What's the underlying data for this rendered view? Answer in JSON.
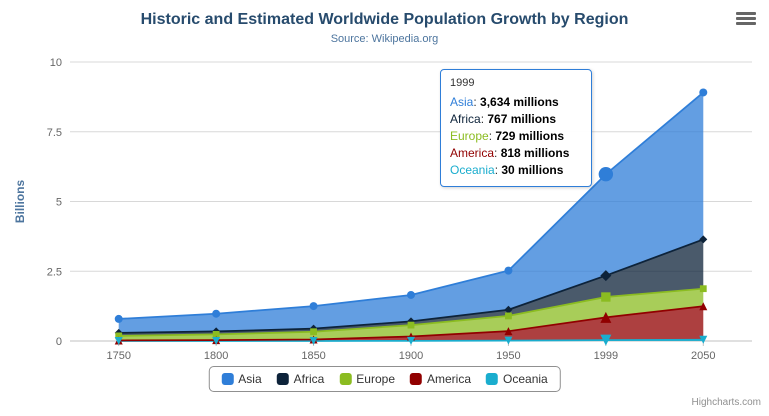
{
  "header": {
    "title": "Historic and Estimated Worldwide Population Growth by Region",
    "subtitle": "Source: Wikipedia.org"
  },
  "chart_data": {
    "type": "area",
    "stacked": true,
    "title": "Historic and Estimated Worldwide Population Growth by Region",
    "subtitle": "Source: Wikipedia.org",
    "categories": [
      "1750",
      "1800",
      "1850",
      "1900",
      "1950",
      "1999",
      "2050"
    ],
    "series": [
      {
        "name": "Asia",
        "color": "#2f7ed8",
        "symbol": "circle",
        "values": [
          502,
          635,
          809,
          947,
          1402,
          3634,
          5268
        ]
      },
      {
        "name": "Africa",
        "color": "#0d233a",
        "symbol": "diamond",
        "values": [
          106,
          107,
          111,
          133,
          221,
          767,
          1766
        ]
      },
      {
        "name": "Europe",
        "color": "#8bbc21",
        "symbol": "square",
        "values": [
          163,
          203,
          276,
          408,
          547,
          729,
          628
        ]
      },
      {
        "name": "America",
        "color": "#910000",
        "symbol": "triangle",
        "values": [
          18,
          31,
          54,
          156,
          339,
          818,
          1201
        ]
      },
      {
        "name": "Oceania",
        "color": "#1aadce",
        "symbol": "triangle-down",
        "values": [
          2,
          2,
          2,
          6,
          13,
          30,
          46
        ]
      }
    ],
    "values_unit": "millions",
    "xlabel": "",
    "ylabel": "Billions",
    "ylim": [
      0,
      10
    ],
    "yticks": [
      0,
      2.5,
      5,
      7.5,
      10
    ],
    "ytick_labels": [
      "0",
      "2.5",
      "5",
      "7.5",
      "10"
    ],
    "grid": true,
    "legend_position": "bottom",
    "hover_index": 5,
    "fill_opacity": 0.75
  },
  "tooltip": {
    "header": "1999",
    "rows": [
      {
        "name": "Asia",
        "color": "#2f7ed8",
        "value": "3,634",
        "suffix": "millions"
      },
      {
        "name": "Africa",
        "color": "#0d233a",
        "value": "767",
        "suffix": "millions"
      },
      {
        "name": "Europe",
        "color": "#8bbc21",
        "value": "729",
        "suffix": "millions"
      },
      {
        "name": "America",
        "color": "#910000",
        "value": "818",
        "suffix": "millions"
      },
      {
        "name": "Oceania",
        "color": "#1aadce",
        "value": "30",
        "suffix": "millions"
      }
    ]
  },
  "legend": {
    "items": [
      {
        "label": "Asia",
        "color": "#2f7ed8"
      },
      {
        "label": "Africa",
        "color": "#0d233a"
      },
      {
        "label": "Europe",
        "color": "#8bbc21"
      },
      {
        "label": "America",
        "color": "#910000"
      },
      {
        "label": "Oceania",
        "color": "#1aadce"
      }
    ]
  },
  "credit": {
    "label": "Highcharts.com"
  }
}
